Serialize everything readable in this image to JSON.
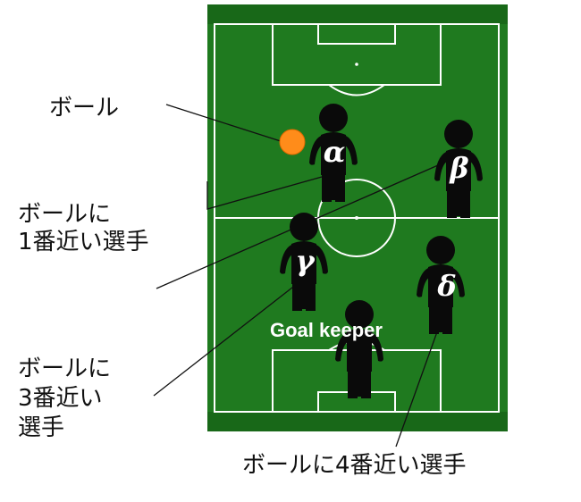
{
  "colors": {
    "pitch": "#1f7a1f",
    "pitch_dark": "#186818",
    "line": "#ffffff",
    "player": "#0a0a0a",
    "ball": "#ff8c1a"
  },
  "labels": {
    "ball": "ボール",
    "nearest1_line1": "ボールに",
    "nearest1_line2": "1番近い選手",
    "nearest3_line1": "ボールに",
    "nearest3_line2": "3番近い",
    "nearest3_line3": "選手",
    "nearest4": "ボールに4番近い選手",
    "goalkeeper": "Goal keeper"
  },
  "players": [
    {
      "id": "alpha",
      "symbol": "α"
    },
    {
      "id": "beta",
      "symbol": "β"
    },
    {
      "id": "gamma",
      "symbol": "γ"
    },
    {
      "id": "delta",
      "symbol": "δ"
    },
    {
      "id": "goalkeeper",
      "symbol": ""
    }
  ]
}
